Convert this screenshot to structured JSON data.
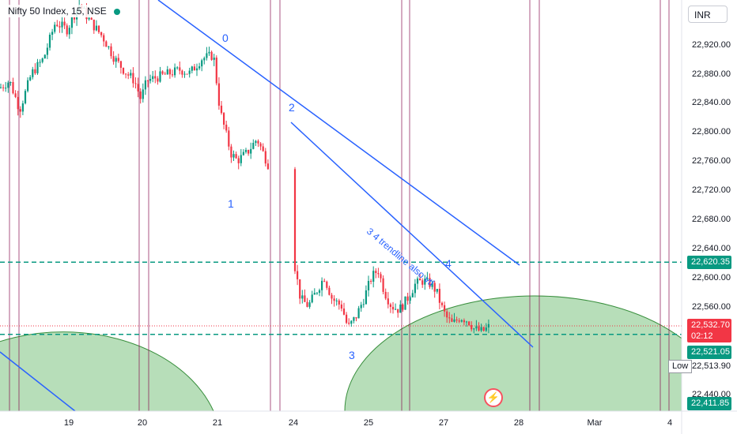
{
  "header": {
    "title": "Nifty 50 Index, 15, NSE",
    "currency": "INR"
  },
  "colors": {
    "up": "#089981",
    "down": "#f23645",
    "trendline": "#2962ff",
    "hline": "#089981",
    "cycle_arc_fill": "#a5d6a7",
    "cycle_arc_stroke": "#388e3c",
    "vline": "#880e4f"
  },
  "chart_data": {
    "type": "candlestick",
    "title": "Nifty 50 Index, 15, NSE",
    "y_ticks": [
      22920,
      22880,
      22840,
      22800,
      22760,
      22720,
      22680,
      22640,
      22600,
      22560,
      22440
    ],
    "y_tick_labels": [
      "22,920.00",
      "22,880.00",
      "22,840.00",
      "22,800.00",
      "22,760.00",
      "22,720.00",
      "22,680.00",
      "22,640.00",
      "22,600.00",
      "22,560.00",
      "22,440.00"
    ],
    "ylim": [
      22400,
      22960
    ],
    "x_ticks": [
      "19",
      "20",
      "21",
      "24",
      "25",
      "26",
      "27",
      "28",
      "Mar",
      "4"
    ],
    "price_badges": [
      {
        "value": "22,620.35",
        "kind": "line"
      },
      {
        "value": "22,532.70",
        "countdown": "02:12",
        "kind": "last"
      },
      {
        "value": "22,521.05",
        "kind": "line"
      },
      {
        "value": "22,411.85",
        "kind": "line"
      }
    ],
    "low_label": "Low",
    "low_value": "22,513.90",
    "annotations": [
      "0",
      "1",
      "2",
      "3",
      "4",
      "3 4 trendline also vtl"
    ],
    "horizontal_levels": [
      22620.35,
      22521.05
    ],
    "grid": false
  },
  "labels": {
    "a0": "0",
    "a1": "1",
    "a2": "2",
    "a3": "3",
    "a4": "4",
    "trend": "3 4 trendline also vtl",
    "low": "Low",
    "low_value": "22,513.90",
    "badge1": "22,620.35",
    "badge2": "22,532.70",
    "badge2b": "02:12",
    "badge3": "22,521.05",
    "badge4": "22,411.85"
  },
  "icons": {
    "flash": "lightning-icon"
  }
}
